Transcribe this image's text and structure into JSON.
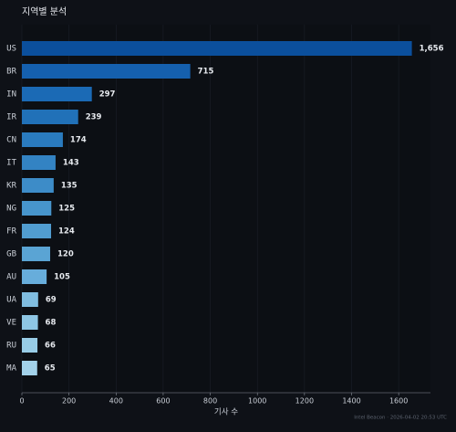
{
  "chart_data": {
    "type": "bar",
    "orientation": "horizontal",
    "title": "지역별 분석",
    "x_label": "기사 수",
    "footer": "Intel Beacon · 2026-04-02 20:53 UTC",
    "categories": [
      "US",
      "BR",
      "IN",
      "IR",
      "CN",
      "IT",
      "KR",
      "NG",
      "FR",
      "GB",
      "AU",
      "UA",
      "VE",
      "RU",
      "MA"
    ],
    "values": [
      1656,
      715,
      297,
      239,
      174,
      143,
      135,
      125,
      124,
      120,
      105,
      69,
      68,
      66,
      65
    ],
    "value_labels": [
      "1,656",
      "715",
      "297",
      "239",
      "174",
      "143",
      "135",
      "125",
      "124",
      "120",
      "105",
      "69",
      "68",
      "66",
      "65"
    ],
    "colors": [
      "#0b4f9c",
      "#1560ae",
      "#1b6ab5",
      "#2171b8",
      "#2a7bbf",
      "#3383c3",
      "#3d8cc8",
      "#4795cc",
      "#519dd0",
      "#5aa4d4",
      "#67addb",
      "#80bde0",
      "#8ec6e4",
      "#98cce6",
      "#a3d2ea"
    ],
    "xlim": [
      0,
      1735
    ],
    "xticks": [
      0,
      200,
      400,
      600,
      800,
      1000,
      1200,
      1400,
      1600
    ],
    "grid": true
  }
}
